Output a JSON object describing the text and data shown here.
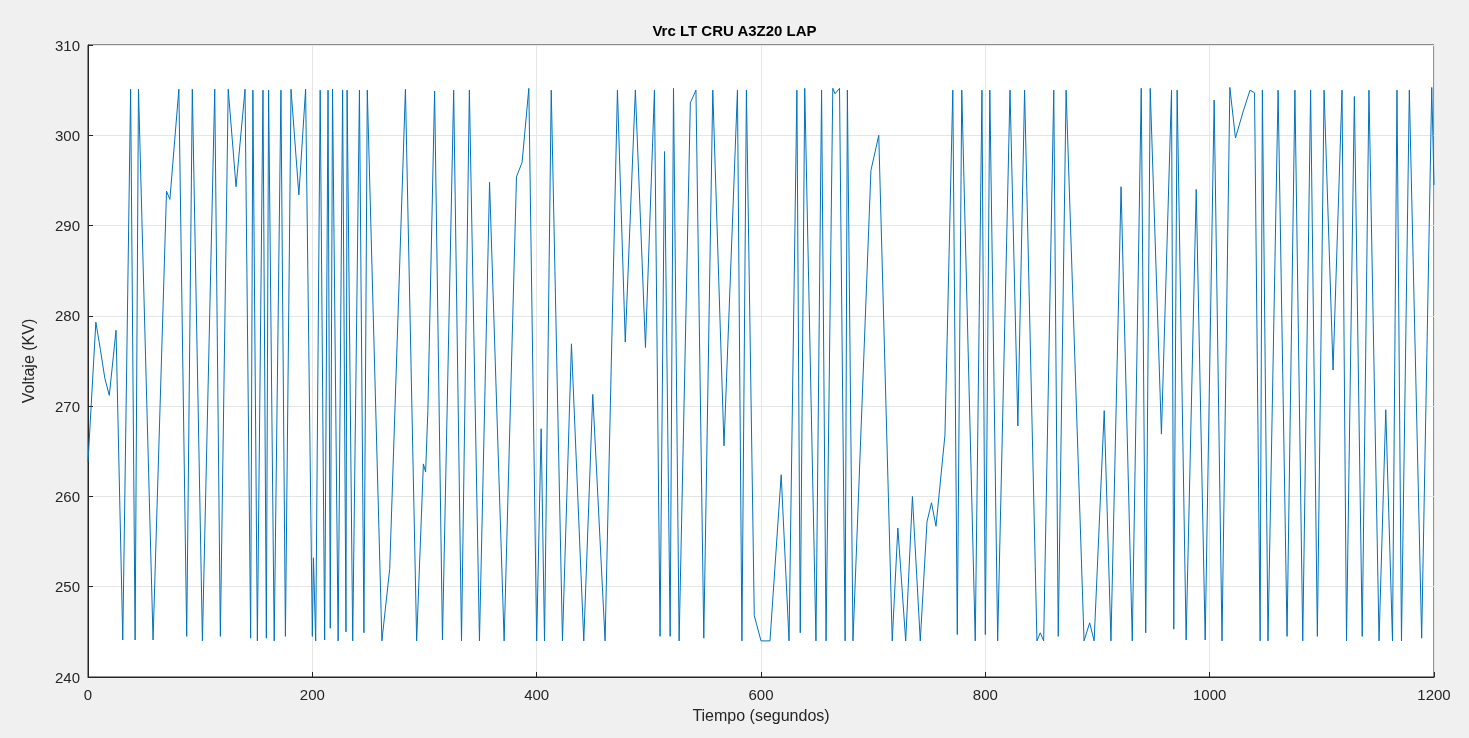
{
  "chart_data": {
    "type": "line",
    "title": "Vrc LT CRU A3Z20 LAP",
    "xlabel": "Tiempo (segundos)",
    "ylabel": "Voltaje (KV)",
    "x": [
      0,
      7,
      11,
      15,
      19,
      25,
      31,
      38,
      42,
      45,
      58,
      70,
      73,
      81,
      88,
      93,
      102,
      113,
      118,
      125,
      132,
      140,
      145,
      147,
      151,
      156,
      159,
      161,
      166,
      172,
      176,
      181,
      188,
      194,
      200,
      201,
      203,
      207,
      211,
      214,
      216,
      218,
      223,
      227,
      230,
      231,
      236,
      242,
      246,
      249,
      262,
      269,
      283,
      293,
      299,
      301,
      303,
      309,
      316,
      326,
      333,
      340,
      349,
      358,
      371,
      382,
      387,
      393,
      400,
      404,
      407,
      413,
      423,
      431,
      442,
      450,
      461,
      472,
      479,
      488,
      497,
      505,
      510,
      514,
      519,
      522,
      527,
      537,
      542,
      549,
      557,
      567,
      579,
      583,
      587,
      594,
      600,
      608,
      618,
      625,
      632,
      635,
      639,
      649,
      654,
      658,
      664,
      666,
      670,
      675,
      677,
      682,
      698,
      705,
      717,
      722,
      729,
      735,
      742,
      748,
      752,
      756,
      764,
      771,
      775,
      779,
      791,
      797,
      800,
      804,
      811,
      822,
      829,
      835,
      846,
      849,
      852,
      861,
      865,
      872,
      888,
      893,
      897,
      906,
      912,
      921,
      931,
      939,
      943,
      947,
      957,
      966,
      968,
      971,
      979,
      988,
      996,
      1004,
      1011,
      1018,
      1023,
      1030,
      1036,
      1040,
      1045,
      1047,
      1052,
      1061,
      1069,
      1076,
      1083,
      1090,
      1096,
      1102,
      1110,
      1118,
      1122,
      1129,
      1136,
      1142,
      1151,
      1157,
      1163,
      1167,
      1171,
      1178,
      1189,
      1198,
      1200
    ],
    "values": [
      263.8,
      279.3,
      276.3,
      273.1,
      271.2,
      278.4,
      244.1,
      305.1,
      244.1,
      305.1,
      244.1,
      293.8,
      292.9,
      305.1,
      244.5,
      305.1,
      244,
      305.1,
      244.5,
      305.1,
      294.3,
      305.1,
      244.3,
      305,
      244,
      305,
      244.3,
      305,
      244,
      305,
      244.5,
      305.1,
      293.4,
      305.1,
      244.5,
      253.2,
      244,
      305,
      244.1,
      305,
      245.4,
      305.1,
      244,
      305,
      245,
      305,
      244,
      305,
      244.9,
      305,
      244,
      252,
      305.1,
      244,
      263.6,
      262.7,
      269.5,
      304.9,
      244.1,
      305,
      244,
      305,
      244,
      294.8,
      244,
      295.4,
      297,
      305.2,
      244,
      267.5,
      244,
      305,
      244,
      276.9,
      244,
      271.3,
      244,
      305,
      277.1,
      305,
      276.5,
      305,
      244.5,
      298.2,
      244.5,
      305.2,
      244,
      303.6,
      305,
      244.3,
      305,
      265.6,
      305,
      244,
      305,
      246.8,
      244,
      244,
      262.4,
      244,
      305,
      244.9,
      305.2,
      244,
      305,
      244,
      305.2,
      304.6,
      305.2,
      244,
      305,
      244,
      296.1,
      300,
      244,
      256.5,
      244,
      260,
      244,
      257.2,
      259.3,
      256.7,
      266.8,
      305,
      244.7,
      305,
      244,
      305,
      244.7,
      305,
      244,
      305,
      267.8,
      305,
      244,
      244.9,
      244,
      305,
      244.5,
      305,
      244,
      246,
      244,
      269.5,
      244,
      294.3,
      244,
      305.2,
      244.9,
      305.2,
      266.9,
      305,
      245.3,
      305,
      244.1,
      294,
      244.1,
      303.9,
      244,
      305.3,
      299.7,
      302.7,
      305,
      304.7,
      244,
      305,
      244,
      305,
      244.5,
      305,
      244,
      305,
      244.5,
      305,
      274,
      305,
      244,
      304.3,
      244.5,
      305,
      244,
      269.6,
      244,
      305,
      244,
      305,
      244.3,
      305.3,
      294.5
    ],
    "color": "#0072bd",
    "marker": "none",
    "xlim": [
      0,
      1200
    ],
    "xticks": [
      0,
      200,
      400,
      600,
      800,
      1000,
      1200
    ],
    "ylim": [
      240,
      310
    ],
    "yticks": [
      240,
      250,
      260,
      270,
      280,
      290,
      300,
      310
    ],
    "grid": true
  }
}
